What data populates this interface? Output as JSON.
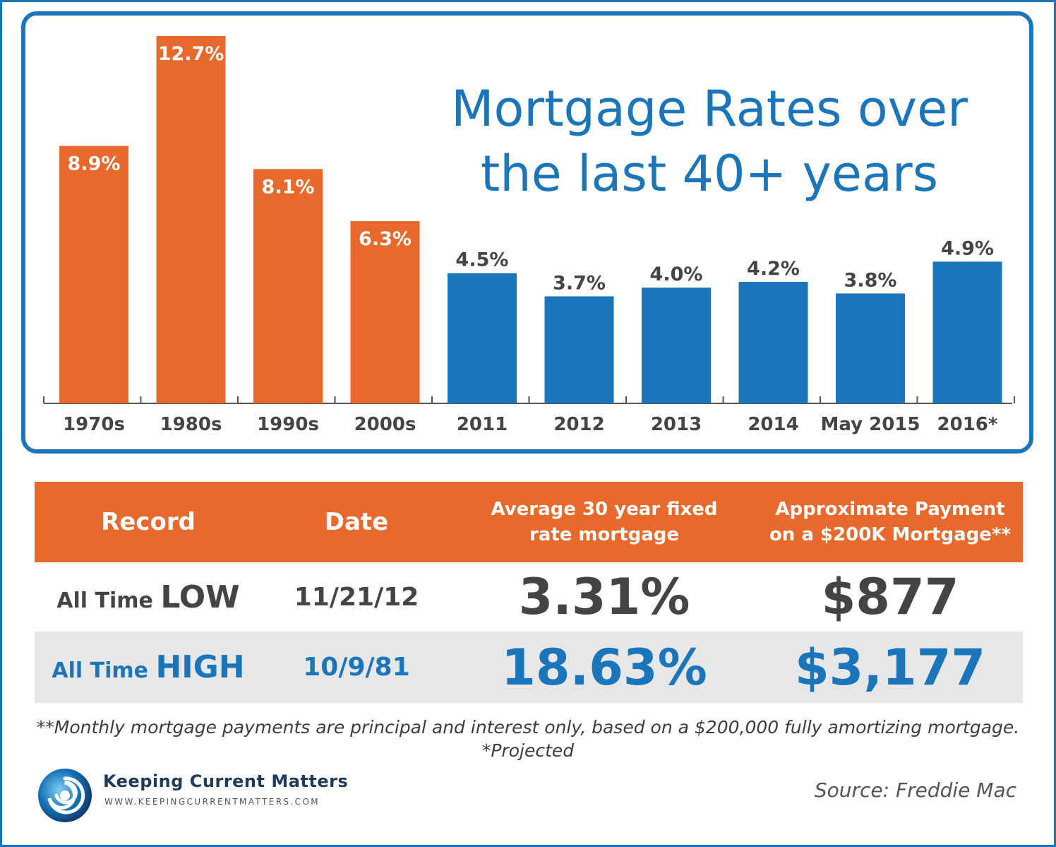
{
  "chart_data": {
    "type": "bar",
    "title": "Mortgage Rates over the last 40+ years",
    "title_lines": [
      "Mortgage Rates over",
      "the last 40+ years"
    ],
    "categories": [
      "1970s",
      "1980s",
      "1990s",
      "2000s",
      "2011",
      "2012",
      "2013",
      "2014",
      "May 2015",
      "2016*"
    ],
    "values": [
      8.9,
      12.7,
      8.1,
      6.3,
      4.5,
      3.7,
      4.0,
      4.2,
      3.8,
      4.9
    ],
    "value_labels": [
      "8.9%",
      "12.7%",
      "8.1%",
      "6.3%",
      "4.5%",
      "3.7%",
      "4.0%",
      "4.2%",
      "3.8%",
      "4.9%"
    ],
    "bar_colors": [
      "#e8692b",
      "#e8692b",
      "#e8692b",
      "#e8692b",
      "#1a75bb",
      "#1a75bb",
      "#1a75bb",
      "#1a75bb",
      "#1a75bb",
      "#1a75bb"
    ],
    "xlabel": "",
    "ylabel": "",
    "ylim": [
      0,
      12.7
    ],
    "grid": false,
    "legend": "none"
  },
  "colors": {
    "orange": "#e8692b",
    "blue": "#1a75bb",
    "dark_text": "#444444",
    "row_gray": "#e7e7e8"
  },
  "table": {
    "headers": {
      "record": "Record",
      "date": "Date",
      "rate_line1": "Average 30 year fixed",
      "rate_line2": "rate mortgage",
      "payment_line1": "Approximate Payment",
      "payment_line2": "on a $200K Mortgage**"
    },
    "rows": [
      {
        "prefix": "All Time ",
        "word": "LOW",
        "date": "11/21/12",
        "rate": "3.31%",
        "payment": "$877"
      },
      {
        "prefix": "All Time ",
        "word": "HIGH",
        "date": "10/9/81",
        "rate": "18.63%",
        "payment": "$3,177"
      }
    ]
  },
  "footnotes": {
    "line1": "**Monthly mortgage payments are principal and interest only, based on a $200,000 fully amortizing mortgage.",
    "line2": "*Projected"
  },
  "brand": {
    "name": "Keeping Current Matters",
    "url": "WWW.KEEPINGCURRENTMATTERS.COM",
    "logo_icon": "swirl-logo-icon"
  },
  "source": "Source: Freddie Mac"
}
